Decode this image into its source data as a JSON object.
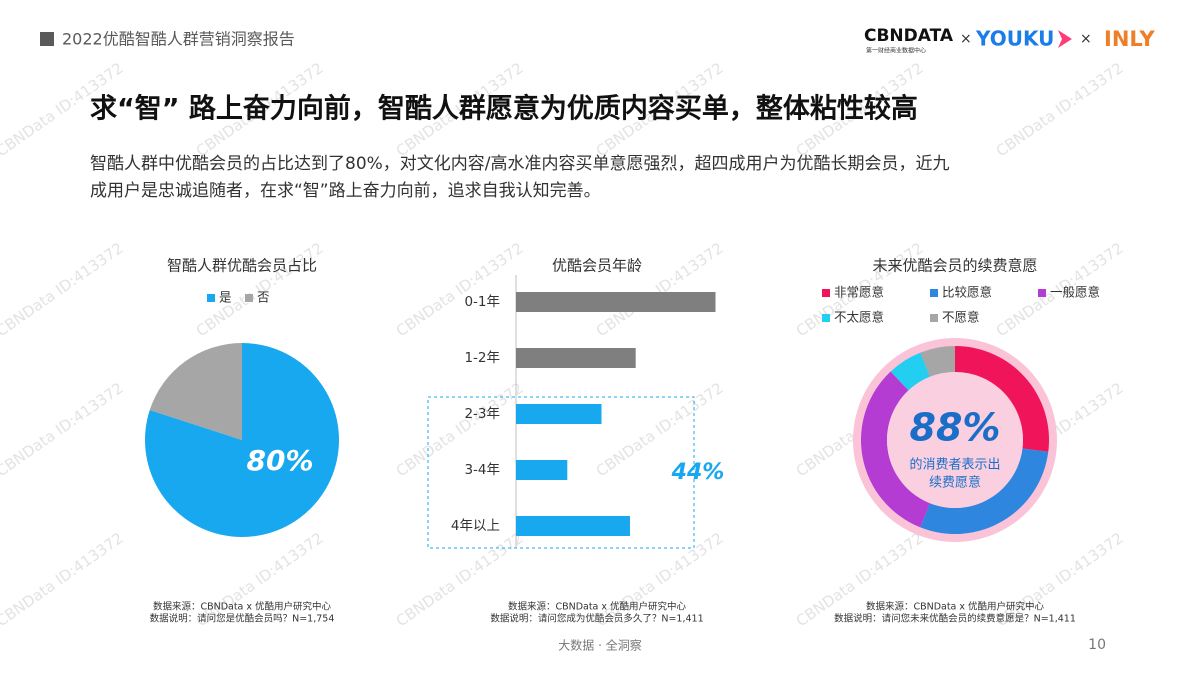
{
  "header": {
    "report": "2022优酷智酷人群营销洞察报告",
    "logo_cbn": "CBNDATA",
    "logo_cbn_sub": "第一财经商业数据中心",
    "times": "×",
    "logo_youku": "YOUKU",
    "logo_inly": "INLY"
  },
  "title": "求“智” 路上奋力向前，智酷人群愿意为优质内容买单，整体粘性较高",
  "subtitle_lines": [
    "智酷人群中优酷会员的占比达到了80%，对文化内容/高水准内容买单意愿强烈，超四成用户为优酷长期会员，近九",
    "成用户是忠诚追随者，在求“智”路上奋力向前，追求自我认知完善。"
  ],
  "watermark": "CBNData ID:413372",
  "footer": {
    "slogan": "大数据 · 全洞察",
    "page": "10"
  },
  "chart_data": [
    {
      "type": "pie",
      "title": "智酷人群优酷会员占比",
      "categories": [
        "是",
        "否"
      ],
      "values": [
        80,
        20
      ],
      "value_labels": [
        "80%",
        null
      ],
      "colors": [
        "#18a8f0",
        "#a6a6a6"
      ],
      "notes": [
        "数据来源：CBNData x 优酷用户研究中心",
        "数据说明：请问您是优酷会员吗？N=1,754"
      ]
    },
    {
      "type": "bar",
      "title": "优酷会员年龄",
      "categories": [
        "0-1年",
        "1-2年",
        "2-3年",
        "3-4年",
        "4年以上"
      ],
      "values": [
        35,
        21,
        15,
        9,
        20
      ],
      "colors": [
        "#7f7f7f",
        "#7f7f7f",
        "#18a8f0",
        "#18a8f0",
        "#18a8f0"
      ],
      "annotation": "44%",
      "notes": [
        "数据来源：CBNData x 优酷用户研究中心",
        "数据说明：请问您成为优酷会员多久了？N=1,411"
      ]
    },
    {
      "type": "donut",
      "title": "未来优酷会员的续费意愿",
      "categories": [
        "非常愿意",
        "比较愿意",
        "一般愿意",
        "不太愿意",
        "不愿意"
      ],
      "values": [
        27,
        29,
        32,
        6,
        6
      ],
      "colors": [
        "#f0145a",
        "#2e86de",
        "#b43cd2",
        "#22cff0",
        "#a6a6a6"
      ],
      "center_value": {
        "value": 88,
        "label": "88%"
      },
      "center_text": [
        "的消费者表示出",
        "续费愿意"
      ],
      "notes": [
        "数据来源：CBNData x 优酷用户研究中心",
        "数据说明：请问您未来优酷会员的续费意愿是？N=1,411"
      ]
    }
  ]
}
